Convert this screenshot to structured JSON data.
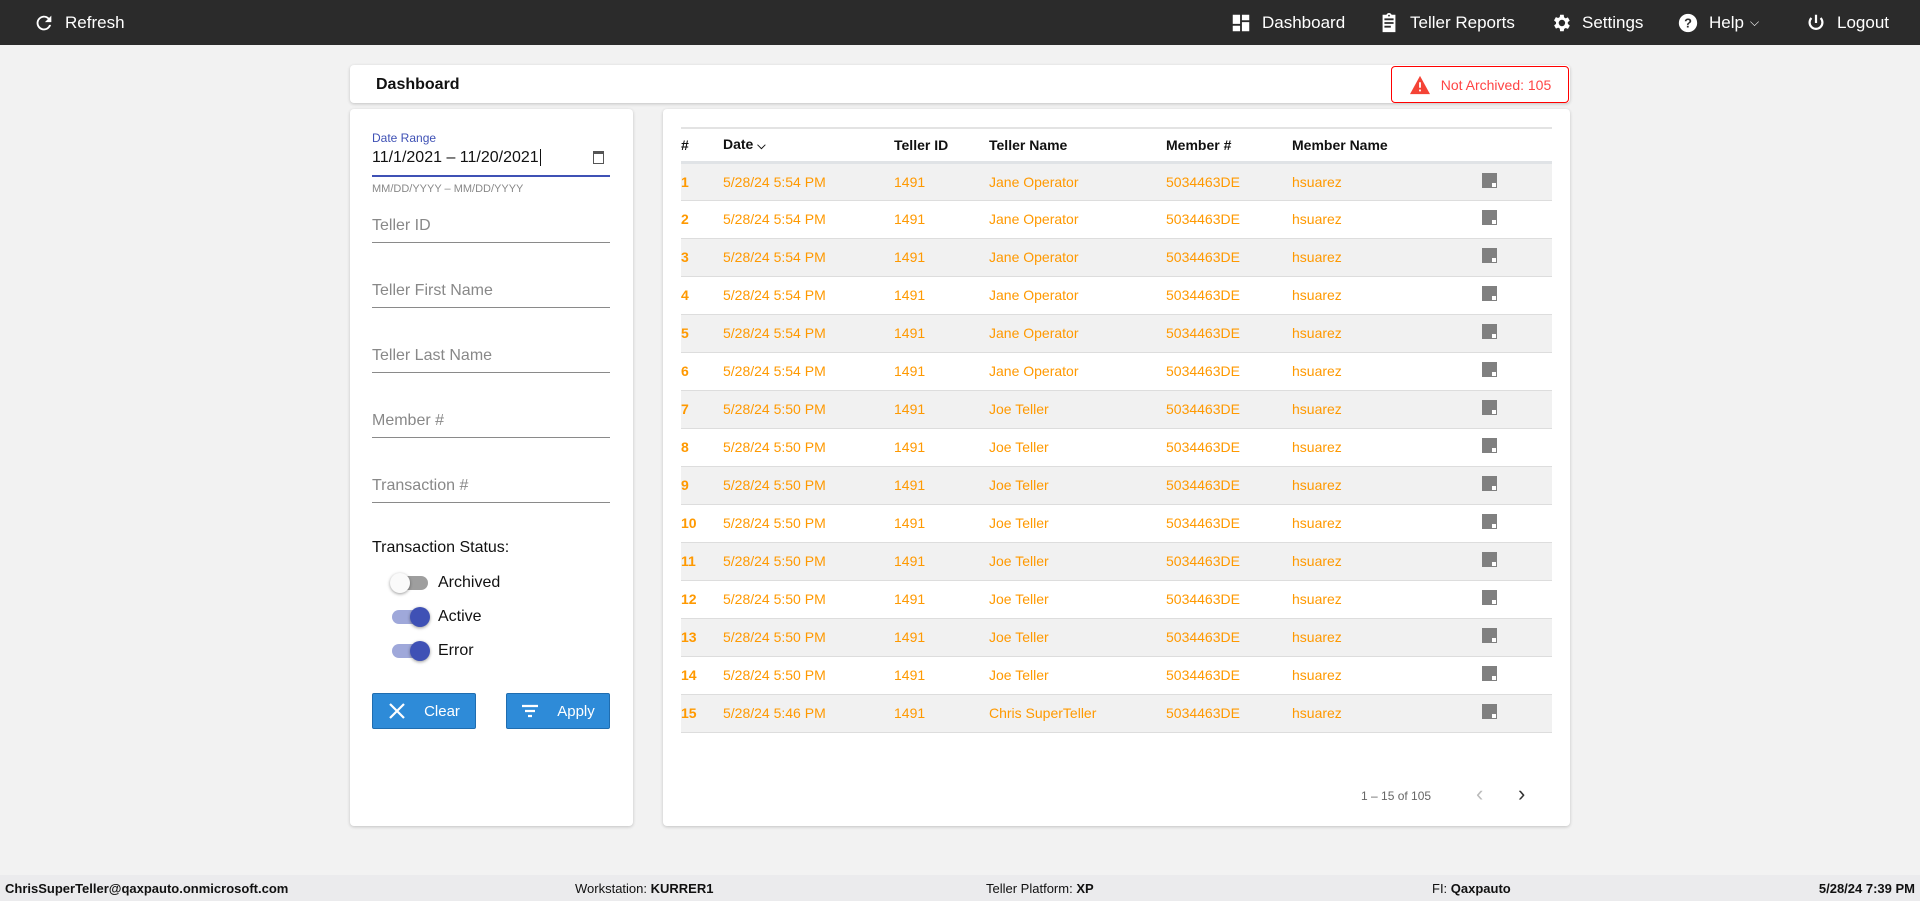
{
  "topbar": {
    "refresh": "Refresh",
    "dashboard": "Dashboard",
    "teller_reports": "Teller Reports",
    "settings": "Settings",
    "help": "Help",
    "logout": "Logout"
  },
  "header": {
    "title": "Dashboard",
    "not_archived": "Not Archived: 105"
  },
  "filters": {
    "date_range_label": "Date Range",
    "date_range_value": "11/1/2021 – 11/20/2021",
    "date_hint": "MM/DD/YYYY – MM/DD/YYYY",
    "teller_id": "Teller ID",
    "teller_first": "Teller First Name",
    "teller_last": "Teller Last Name",
    "member": "Member #",
    "transaction": "Transaction #",
    "status_label": "Transaction Status:",
    "toggles": [
      {
        "label": "Archived",
        "on": false
      },
      {
        "label": "Active",
        "on": true
      },
      {
        "label": "Error",
        "on": true
      }
    ],
    "clear": "Clear",
    "apply": "Apply"
  },
  "table": {
    "columns": [
      "#",
      "Date",
      "Teller ID",
      "Teller Name",
      "Member #",
      "Member Name"
    ],
    "rows": [
      [
        "1",
        "5/28/24 5:54 PM",
        "1491",
        "Jane Operator",
        "5034463DE",
        "hsuarez"
      ],
      [
        "2",
        "5/28/24 5:54 PM",
        "1491",
        "Jane Operator",
        "5034463DE",
        "hsuarez"
      ],
      [
        "3",
        "5/28/24 5:54 PM",
        "1491",
        "Jane Operator",
        "5034463DE",
        "hsuarez"
      ],
      [
        "4",
        "5/28/24 5:54 PM",
        "1491",
        "Jane Operator",
        "5034463DE",
        "hsuarez"
      ],
      [
        "5",
        "5/28/24 5:54 PM",
        "1491",
        "Jane Operator",
        "5034463DE",
        "hsuarez"
      ],
      [
        "6",
        "5/28/24 5:54 PM",
        "1491",
        "Jane Operator",
        "5034463DE",
        "hsuarez"
      ],
      [
        "7",
        "5/28/24 5:50 PM",
        "1491",
        "Joe Teller",
        "5034463DE",
        "hsuarez"
      ],
      [
        "8",
        "5/28/24 5:50 PM",
        "1491",
        "Joe Teller",
        "5034463DE",
        "hsuarez"
      ],
      [
        "9",
        "5/28/24 5:50 PM",
        "1491",
        "Joe Teller",
        "5034463DE",
        "hsuarez"
      ],
      [
        "10",
        "5/28/24 5:50 PM",
        "1491",
        "Joe Teller",
        "5034463DE",
        "hsuarez"
      ],
      [
        "11",
        "5/28/24 5:50 PM",
        "1491",
        "Joe Teller",
        "5034463DE",
        "hsuarez"
      ],
      [
        "12",
        "5/28/24 5:50 PM",
        "1491",
        "Joe Teller",
        "5034463DE",
        "hsuarez"
      ],
      [
        "13",
        "5/28/24 5:50 PM",
        "1491",
        "Joe Teller",
        "5034463DE",
        "hsuarez"
      ],
      [
        "14",
        "5/28/24 5:50 PM",
        "1491",
        "Joe Teller",
        "5034463DE",
        "hsuarez"
      ],
      [
        "15",
        "5/28/24 5:46 PM",
        "1491",
        "Chris SuperTeller",
        "5034463DE",
        "hsuarez"
      ]
    ],
    "pagination": "1 – 15 of 105"
  },
  "footer": {
    "user": "ChrisSuperTeller@qaxpauto.onmicrosoft.com",
    "workstation_label": "Workstation: ",
    "workstation": "KURRER1",
    "platform_label": "Teller Platform: ",
    "platform": "XP",
    "fi_label": "FI: ",
    "fi": "Qaxpauto",
    "datetime": "5/28/24 7:39 PM"
  },
  "colors": {
    "accent": "#3f51b5",
    "row_text": "#ff9900",
    "button": "#2e8bd8",
    "alert": "#f44336",
    "topbar": "#2b2b2b"
  }
}
